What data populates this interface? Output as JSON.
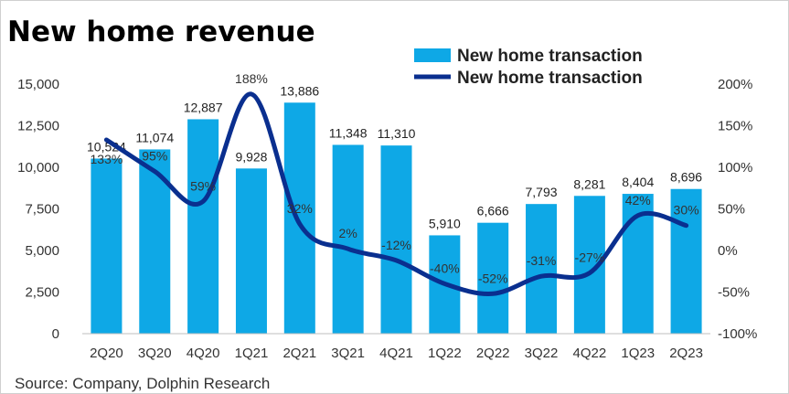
{
  "chart_data": {
    "type": "bar",
    "title": "New home revenue",
    "categories": [
      "2Q20",
      "3Q20",
      "4Q20",
      "1Q21",
      "2Q21",
      "3Q21",
      "4Q21",
      "1Q22",
      "2Q22",
      "3Q22",
      "4Q22",
      "1Q23",
      "2Q23"
    ],
    "series": [
      {
        "name": "New home transaction",
        "type": "bar",
        "axis": "left",
        "color": "#0EA8E6",
        "values": [
          10524,
          11074,
          12887,
          9928,
          13886,
          11348,
          11310,
          5910,
          6666,
          7793,
          8281,
          8404,
          8696
        ],
        "labels": [
          "10,524",
          "11,074",
          "12,887",
          "9,928",
          "13,886",
          "11,348",
          "11,310",
          "5,910",
          "6,666",
          "7,793",
          "8,281",
          "8,404",
          "8,696"
        ]
      },
      {
        "name": "New home transaction",
        "type": "line",
        "axis": "right",
        "color": "#0A2F8F",
        "values": [
          133,
          95,
          59,
          188,
          32,
          2,
          -12,
          -40,
          -52,
          -31,
          -27,
          42,
          30
        ],
        "labels": [
          "133%",
          "95%",
          "59%",
          "188%",
          "32%",
          "2%",
          "-12%",
          "-40%",
          "-52%",
          "-31%",
          "-27%",
          "42%",
          "30%"
        ]
      }
    ],
    "y_left": {
      "range": [
        0,
        15000
      ],
      "ticks": [
        0,
        2500,
        5000,
        7500,
        10000,
        12500,
        15000
      ],
      "tick_labels": [
        "0",
        "2,500",
        "5,000",
        "7,500",
        "10,000",
        "12,500",
        "15,000"
      ]
    },
    "y_right": {
      "range": [
        -100,
        200
      ],
      "ticks": [
        -100,
        -50,
        0,
        50,
        100,
        150,
        200
      ],
      "tick_labels": [
        "-100%",
        "-50%",
        "0%",
        "50%",
        "100%",
        "150%",
        "200%"
      ]
    },
    "grid": false,
    "legend": "top-right",
    "source": "Source: Company, Dolphin Research"
  }
}
